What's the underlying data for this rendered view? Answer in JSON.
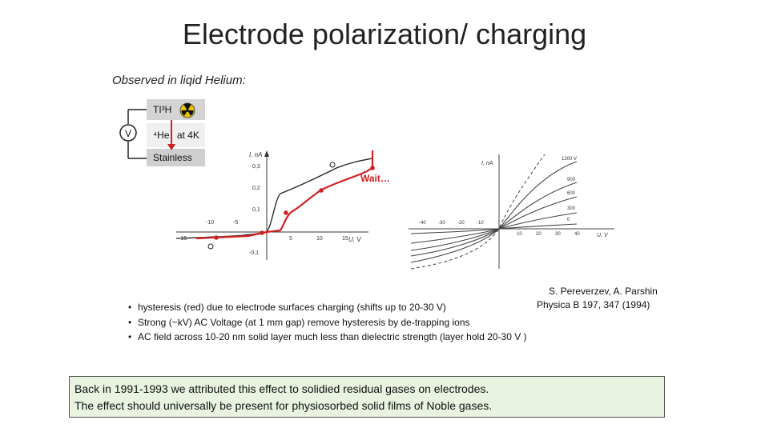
{
  "slide": {
    "title": "Electrode polarization/ charging",
    "subtitle": "Observed in liqid Helium:"
  },
  "schematic": {
    "voltage_label": "V",
    "top_layer": "TI³H",
    "middle_layer_a": "⁴He",
    "middle_layer_b": "at 4K",
    "bottom_layer": "Stainless",
    "radiation_icon": "radiation-hazard-icon"
  },
  "plots": {
    "left": {
      "wait_label": "Wait…",
      "y_unit": "I, nA",
      "x_unit": "U, V",
      "y_ticks": [
        "0,3",
        "0,2",
        "0,1",
        "-0,1"
      ],
      "x_ticks": [
        "-15",
        "-10",
        "-5",
        "5",
        "10",
        "15"
      ]
    },
    "right": {
      "y_unit": "I, nA",
      "x_unit": "U, V",
      "x_ticks": [
        "-40",
        "-30",
        "-20",
        "-10",
        "10",
        "20",
        "30",
        "40"
      ],
      "curve_labels": [
        "1200 V",
        "900",
        "600",
        "300",
        "0"
      ]
    }
  },
  "citation": {
    "authors": "S. Pereverzev, A. Parshin",
    "journal": "Physica B 197, 347 (1994)"
  },
  "bullets": [
    "hysteresis (red) due to electrode surfaces charging (shifts up to 20-30 V)",
    "Strong (~kV) AC Voltage (at 1 mm gap) remove hysteresis by de-trapping ions",
    "AC field across 10-20 nm solid layer much less than dielectric strength (layer hold 20-30 V )"
  ],
  "bullet_glyph": "•",
  "note": {
    "line1": "Back in 1991-1993 we attributed this effect to solidied residual gases on electrodes.",
    "line2": "The effect should universally be present for physiosorbed solid films of Noble gases."
  },
  "colors": {
    "accent_red": "#d12020",
    "note_bg": "#e8f3e0"
  }
}
